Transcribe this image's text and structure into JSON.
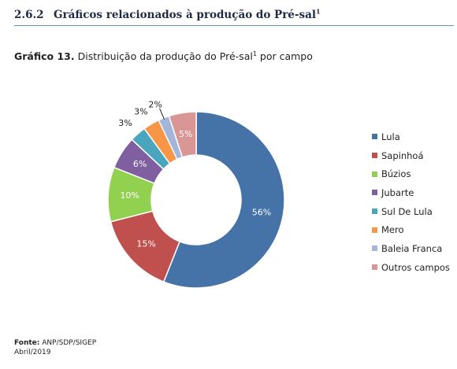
{
  "section": {
    "number": "2.6.2",
    "title": "Gráficos relacionados à produção do Pré-sal",
    "title_sup": "1"
  },
  "chart_caption": {
    "lead": "Gráfico 13.",
    "text": "Distribuição da produção do Pré-sal",
    "sup": "1",
    "text_after": "por campo"
  },
  "chart_data": {
    "type": "pie",
    "style": "donut",
    "legend_position": "right",
    "categories": [
      "Lula",
      "Sapinhoá",
      "Búzios",
      "Jubarte",
      "Sul De Lula",
      "Mero",
      "Baleia Franca",
      "Outros campos"
    ],
    "values": [
      56,
      15,
      10,
      6,
      3,
      3,
      2,
      5
    ],
    "data_labels": [
      "56%",
      "15%",
      "10%",
      "6%",
      "3%",
      "3%",
      "2%",
      "5%"
    ],
    "colors": [
      "#4572a7",
      "#c0504d",
      "#92d050",
      "#7f5f9f",
      "#4aa5bf",
      "#f79646",
      "#a3b6d9",
      "#d99694"
    ]
  },
  "footer": {
    "source_label": "Fonte:",
    "source": "ANP/SDP/SIGEP",
    "date": "Abril/2019"
  }
}
